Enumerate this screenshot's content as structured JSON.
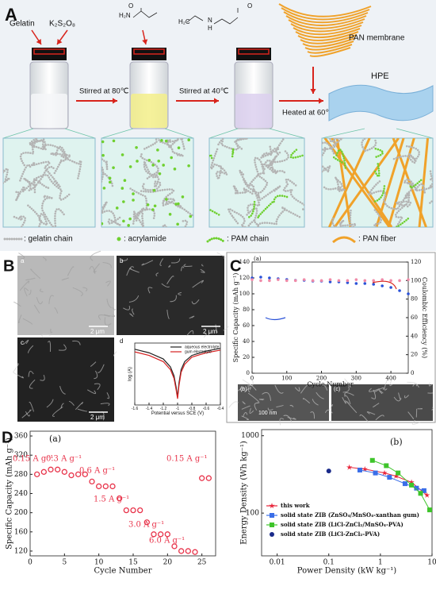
{
  "panel_a": {
    "label": "A",
    "reagent_1": "Gelatin",
    "reagent_2": "K₂S₂O₈",
    "monomer_labels": [
      "H₂N",
      "O",
      "H₂C",
      "N",
      "H",
      "O"
    ],
    "membrane": "PAN membrane",
    "product": "HPE",
    "step_1": "Stirred at 80℃",
    "step_2": "Stirred at 40℃",
    "step_3": "Heated at 60℃",
    "legend": [
      ": gelatin chain",
      ": acrylamide",
      ": PAM chain",
      ": PAN fiber"
    ]
  },
  "panel_b": {
    "label": "B",
    "images": [
      {
        "label": "a",
        "scale": "2 μm"
      },
      {
        "label": "b",
        "scale": "2 μm"
      },
      {
        "label": "c",
        "scale": "2 μm"
      }
    ]
  },
  "panel_c": {
    "label": "C",
    "images": [
      {
        "label": "(b)",
        "scale": "100 nm"
      },
      {
        "label": "(c)"
      }
    ]
  },
  "panel_d": {
    "label": "D"
  },
  "chart_data": [
    {
      "type": "line",
      "label": "d",
      "xlabel": "Potential versus SCE (V)",
      "ylabel": "log (A)",
      "x": [
        -1.6,
        -1.4,
        -1.2,
        -1.1,
        -1.05,
        -1.02,
        -1.0,
        -0.98,
        -0.95,
        -0.9,
        -0.8,
        -0.6,
        -0.4
      ],
      "xlim": [
        -1.6,
        -0.4
      ],
      "xticks": [
        -1.6,
        -1.4,
        -1.2,
        -1.0,
        -0.8,
        -0.6,
        -0.4
      ],
      "ylim": [
        -8.5,
        -1.5
      ],
      "series": [
        {
          "name": "aqueous electrolyte",
          "color": "#222222",
          "values": [
            -2.2,
            -2.6,
            -3.3,
            -4.2,
            -5.2,
            -6.5,
            -7.6,
            -6.0,
            -4.5,
            -3.6,
            -2.9,
            -2.4,
            -2.1
          ]
        },
        {
          "name": "gum electrolyte",
          "color": "#d62020",
          "values": [
            -2.5,
            -2.9,
            -3.6,
            -4.5,
            -5.5,
            -6.8,
            -7.8,
            -6.3,
            -4.8,
            -3.9,
            -3.1,
            -2.6,
            -2.3
          ]
        }
      ]
    },
    {
      "type": "scatter",
      "label": "(a)",
      "xlabel": "Cycle Number",
      "ylabel": "Specific Capacity (mAh g⁻¹)",
      "y2label": "Coulombic Efficiency (%)",
      "x": [
        0,
        25,
        50,
        75,
        100,
        125,
        150,
        175,
        200,
        225,
        250,
        275,
        300,
        325,
        350,
        375,
        400,
        425,
        450
      ],
      "xlim": [
        0,
        450
      ],
      "xticks": [
        0,
        100,
        200,
        300,
        400
      ],
      "ylim": [
        0,
        140
      ],
      "yticks": [
        0,
        20,
        40,
        60,
        80,
        100,
        120,
        140
      ],
      "y2lim": [
        0,
        120
      ],
      "y2ticks": [
        0,
        20,
        40,
        60,
        80,
        100,
        120
      ],
      "series": [
        {
          "color": "#2a52d8",
          "marker": "circle",
          "values": [
            120,
            121,
            120,
            119,
            118,
            117,
            117,
            116,
            116,
            115,
            115,
            114,
            113,
            113,
            112,
            110,
            108,
            104,
            100
          ]
        },
        {
          "color": "#f08aa8",
          "marker": "circle",
          "axis": "y2",
          "values": [
            101,
            100,
            100,
            101,
            100,
            100,
            101,
            100,
            100,
            101,
            100,
            100,
            101,
            100,
            100,
            101,
            100,
            100,
            101
          ]
        }
      ]
    },
    {
      "type": "scatter",
      "label": "(a)",
      "xlabel": "Cycle Number",
      "ylabel": "Specific Capacity (mAh g⁻¹)",
      "x": [
        1,
        2,
        3,
        4,
        5,
        6,
        7,
        8,
        9,
        10,
        11,
        12,
        13,
        14,
        15,
        16,
        17,
        18,
        19,
        20,
        21,
        22,
        23,
        24,
        25,
        26
      ],
      "xlim": [
        0,
        27
      ],
      "xticks": [
        0,
        5,
        10,
        15,
        20,
        25
      ],
      "ylim": [
        110,
        370
      ],
      "yticks": [
        120,
        160,
        200,
        240,
        280,
        320,
        360
      ],
      "annotations": [
        "0.15 A g⁻¹",
        "0.3 A g⁻¹",
        "0.6 A g⁻¹",
        "1.5 A g⁻¹",
        "3.0 A g⁻¹",
        "6.0 A g⁻¹",
        "0.15 A g⁻¹"
      ],
      "series": [
        {
          "color": "#e8334a",
          "marker": "open-circle",
          "values": [
            280,
            285,
            290,
            290,
            285,
            278,
            280,
            280,
            265,
            255,
            255,
            255,
            230,
            205,
            205,
            205,
            180,
            155,
            155,
            155,
            130,
            120,
            120,
            118,
            272,
            272
          ]
        }
      ]
    },
    {
      "type": "scatter",
      "label": "(b)",
      "xlabel": "Power Density (kW kg⁻¹)",
      "ylabel": "Energy Density (Wh kg⁻¹)",
      "xlog": true,
      "ylog": true,
      "xlim": [
        0.005,
        10
      ],
      "xticks": [
        0.01,
        0.1,
        1,
        10
      ],
      "ylim": [
        28,
        1200
      ],
      "yticks": [
        100,
        1000
      ],
      "series": [
        {
          "name": "this work",
          "color": "#e8243a",
          "marker": "star",
          "line": true,
          "x": [
            0.25,
            0.5,
            1.2,
            2,
            4,
            8
          ],
          "values": [
            390,
            370,
            330,
            300,
            250,
            170
          ]
        },
        {
          "name": "solid state ZIB (ZnSO₄/MnSO₄-xanthan gum)",
          "color": "#3a6ee8",
          "marker": "square",
          "line": true,
          "x": [
            0.4,
            0.8,
            1.5,
            3,
            5,
            7
          ],
          "values": [
            360,
            330,
            290,
            240,
            210,
            195
          ]
        },
        {
          "name": "solid state ZIB (LiCl-ZnCl₂/MnSO₄-PVA)",
          "color": "#3ec42a",
          "marker": "square",
          "line": true,
          "x": [
            0.7,
            1.3,
            2.2,
            4,
            6,
            9
          ],
          "values": [
            480,
            410,
            330,
            230,
            180,
            110
          ]
        },
        {
          "name": "solid state ZIB (LiCl-ZnCl₂-PVA)",
          "color": "#1a2a8a",
          "marker": "circle",
          "x": [
            0.1
          ],
          "values": [
            350
          ]
        }
      ]
    }
  ]
}
